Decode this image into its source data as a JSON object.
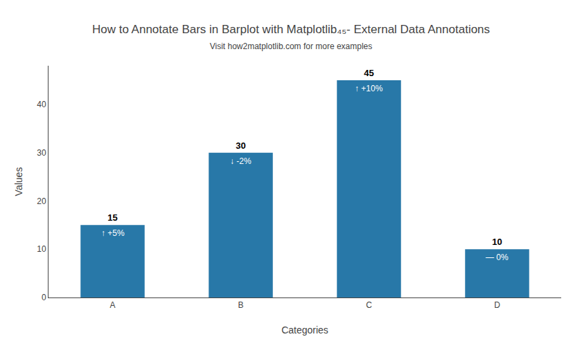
{
  "chart_data": {
    "type": "bar",
    "title": "How to Annotate Bars in Barplot with Matplotlib₄₅- External Data Annotations",
    "subtitle": "Visit how2matplotlib.com for more examples",
    "x_label": "Categories",
    "y_label": "Values",
    "categories": [
      "A",
      "B",
      "C",
      "D"
    ],
    "values": [
      15,
      30,
      45,
      10
    ],
    "color": "#2878a8",
    "data_labels": true,
    "annotations": [
      "↑ +5%",
      "↓ -2%",
      "↑ +10%",
      "— 0%"
    ],
    "ylim": [
      0,
      48
    ],
    "yticks": [
      0,
      10,
      20,
      30,
      40
    ],
    "grid": false
  }
}
